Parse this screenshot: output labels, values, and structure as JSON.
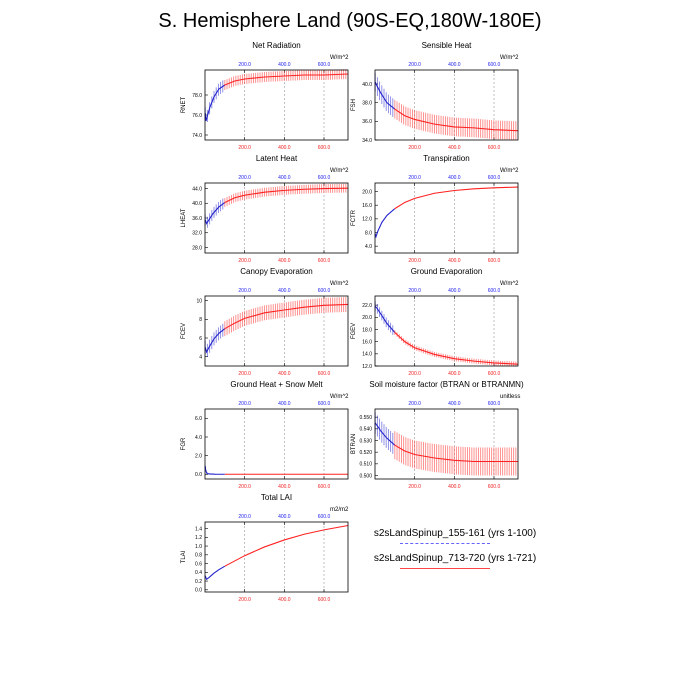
{
  "title": "S. Hemisphere Land (90S-EQ,180W-180E)",
  "legend": [
    {
      "label": "s2sLandSpinup_155-161 (yrs 1-100)",
      "color": "#2222cc"
    },
    {
      "label": "s2sLandSpinup_713-720 (yrs 1-721)",
      "color": "#ff2222"
    }
  ],
  "chart_data": [
    {
      "type": "line",
      "title": "Net Radiation",
      "ylabel": "RNET",
      "units": "W/m^2",
      "xlim": [
        0,
        721
      ],
      "ylim": [
        73.5,
        80.5
      ],
      "yticks": [
        "74.0",
        "76.0",
        "78.0"
      ],
      "ytick_values": [
        74,
        76,
        78
      ],
      "top_ticks": [
        "200.0",
        "400.0",
        "600.0"
      ],
      "bottom_ticks": [
        "200.0",
        "400.0",
        "600.0"
      ],
      "xtick_values": [
        200,
        400,
        600
      ],
      "series": [
        {
          "name": "yrs 1-100",
          "points": [
            [
              1,
              76.2
            ],
            [
              5,
              75.4
            ],
            [
              12,
              75.9
            ],
            [
              25,
              76.8
            ],
            [
              45,
              77.8
            ],
            [
              70,
              78.6
            ],
            [
              100,
              79.0
            ]
          ],
          "spread": 0.6
        },
        {
          "name": "yrs 1-721",
          "points": [
            [
              100,
              79.0
            ],
            [
              150,
              79.4
            ],
            [
              200,
              79.6
            ],
            [
              300,
              79.8
            ],
            [
              400,
              79.9
            ],
            [
              500,
              80.0
            ],
            [
              600,
              80.0
            ],
            [
              721,
              80.1
            ]
          ],
          "spread": 0.5
        }
      ]
    },
    {
      "type": "line",
      "title": "Sensible Heat",
      "ylabel": "FSH",
      "units": "W/m^2",
      "xlim": [
        0,
        721
      ],
      "ylim": [
        34,
        41.5
      ],
      "yticks": [
        "34.0",
        "36.0",
        "38.0",
        "40.0"
      ],
      "ytick_values": [
        34,
        36,
        38,
        40
      ],
      "top_ticks": [
        "200.0",
        "400.0",
        "600.0"
      ],
      "bottom_ticks": [
        "200.0",
        "400.0",
        "600.0"
      ],
      "xtick_values": [
        200,
        400,
        600
      ],
      "series": [
        {
          "name": "yrs 1-100",
          "points": [
            [
              1,
              40.2
            ],
            [
              10,
              39.8
            ],
            [
              30,
              39.0
            ],
            [
              60,
              38.0
            ],
            [
              100,
              37.3
            ]
          ],
          "spread": 1.0
        },
        {
          "name": "yrs 1-721",
          "points": [
            [
              100,
              37.3
            ],
            [
              150,
              36.6
            ],
            [
              200,
              36.2
            ],
            [
              300,
              35.7
            ],
            [
              400,
              35.4
            ],
            [
              500,
              35.3
            ],
            [
              600,
              35.1
            ],
            [
              721,
              35.0
            ]
          ],
          "spread": 1.0
        }
      ]
    },
    {
      "type": "line",
      "title": "Latent Heat",
      "ylabel": "LHEAT",
      "units": "W/m^2",
      "xlim": [
        0,
        721
      ],
      "ylim": [
        26.5,
        45.5
      ],
      "yticks": [
        "28.0",
        "32.0",
        "36.0",
        "40.0",
        "44.0"
      ],
      "ytick_values": [
        28,
        32,
        36,
        40,
        44
      ],
      "top_ticks": [
        "200.0",
        "400.0",
        "600.0"
      ],
      "bottom_ticks": [
        "200.0",
        "400.0",
        "600.0"
      ],
      "xtick_values": [
        200,
        400,
        600
      ],
      "series": [
        {
          "name": "yrs 1-100",
          "points": [
            [
              1,
              35.5
            ],
            [
              8,
              34.5
            ],
            [
              20,
              35.5
            ],
            [
              40,
              37.2
            ],
            [
              70,
              39.0
            ],
            [
              100,
              40.2
            ]
          ],
          "spread": 1.5
        },
        {
          "name": "yrs 1-721",
          "points": [
            [
              100,
              40.2
            ],
            [
              150,
              41.5
            ],
            [
              200,
              42.2
            ],
            [
              300,
              43.0
            ],
            [
              400,
              43.5
            ],
            [
              500,
              43.8
            ],
            [
              600,
              44.0
            ],
            [
              721,
              44.1
            ]
          ],
          "spread": 1.2
        }
      ]
    },
    {
      "type": "line",
      "title": "Transpiration",
      "ylabel": "FCTR",
      "units": "W/m^2",
      "xlim": [
        0,
        721
      ],
      "ylim": [
        2,
        22.5
      ],
      "yticks": [
        "4.0",
        "8.0",
        "12.0",
        "16.0",
        "20.0"
      ],
      "ytick_values": [
        4,
        8,
        12,
        16,
        20
      ],
      "top_ticks": [
        "200.0",
        "400.0",
        "600.0"
      ],
      "bottom_ticks": [
        "200.0",
        "400.0",
        "600.0"
      ],
      "xtick_values": [
        200,
        400,
        600
      ],
      "series": [
        {
          "name": "yrs 1-100",
          "points": [
            [
              1,
              7.5
            ],
            [
              5,
              6.8
            ],
            [
              15,
              8.5
            ],
            [
              35,
              11.0
            ],
            [
              60,
              13.0
            ],
            [
              100,
              15.0
            ]
          ],
          "spread": 0.2
        },
        {
          "name": "yrs 1-721",
          "points": [
            [
              100,
              15.0
            ],
            [
              150,
              16.8
            ],
            [
              200,
              18.0
            ],
            [
              300,
              19.5
            ],
            [
              400,
              20.3
            ],
            [
              500,
              20.8
            ],
            [
              600,
              21.1
            ],
            [
              721,
              21.3
            ]
          ],
          "spread": 0.1
        }
      ]
    },
    {
      "type": "line",
      "title": "Canopy Evaporation",
      "ylabel": "FCEV",
      "units": "W/m^2",
      "xlim": [
        0,
        721
      ],
      "ylim": [
        3,
        10.5
      ],
      "yticks": [
        "4",
        "6",
        "8",
        "10"
      ],
      "ytick_values": [
        4,
        6,
        8,
        10
      ],
      "top_ticks": [
        "200.0",
        "400.0",
        "600.0"
      ],
      "bottom_ticks": [
        "200.0",
        "400.0",
        "600.0"
      ],
      "xtick_values": [
        200,
        400,
        600
      ],
      "series": [
        {
          "name": "yrs 1-100",
          "points": [
            [
              1,
              5.0
            ],
            [
              8,
              4.5
            ],
            [
              20,
              5.0
            ],
            [
              45,
              5.9
            ],
            [
              70,
              6.5
            ],
            [
              100,
              7.0
            ]
          ],
          "spread": 0.7
        },
        {
          "name": "yrs 1-721",
          "points": [
            [
              100,
              7.0
            ],
            [
              150,
              7.6
            ],
            [
              200,
              8.1
            ],
            [
              300,
              8.7
            ],
            [
              400,
              9.0
            ],
            [
              500,
              9.3
            ],
            [
              600,
              9.5
            ],
            [
              721,
              9.6
            ]
          ],
          "spread": 0.8
        }
      ]
    },
    {
      "type": "line",
      "title": "Ground Evaporation",
      "ylabel": "FGEV",
      "units": "W/m^2",
      "xlim": [
        0,
        721
      ],
      "ylim": [
        12,
        23.5
      ],
      "yticks": [
        "12.0",
        "14.0",
        "16.0",
        "18.0",
        "20.0",
        "22.0"
      ],
      "ytick_values": [
        12,
        14,
        16,
        18,
        20,
        22
      ],
      "top_ticks": [
        "200.0",
        "400.0",
        "600.0"
      ],
      "bottom_ticks": [
        "200.0",
        "400.0",
        "600.0"
      ],
      "xtick_values": [
        200,
        400,
        600
      ],
      "series": [
        {
          "name": "yrs 1-100",
          "points": [
            [
              1,
              21.8
            ],
            [
              10,
              21.5
            ],
            [
              30,
              20.5
            ],
            [
              60,
              19.0
            ],
            [
              100,
              17.5
            ]
          ],
          "spread": 0.8
        },
        {
          "name": "yrs 1-721",
          "points": [
            [
              100,
              17.5
            ],
            [
              150,
              16.0
            ],
            [
              200,
              15.0
            ],
            [
              300,
              13.9
            ],
            [
              400,
              13.2
            ],
            [
              500,
              12.8
            ],
            [
              600,
              12.5
            ],
            [
              721,
              12.3
            ]
          ],
          "spread": 0.4
        }
      ]
    },
    {
      "type": "line",
      "title": "Ground Heat + Snow Melt",
      "ylabel": "FGR",
      "units": "W/m^2",
      "xlim": [
        0,
        721
      ],
      "ylim": [
        -0.5,
        7
      ],
      "yticks": [
        "0.0",
        "2.0",
        "4.0",
        "6.0"
      ],
      "ytick_values": [
        0,
        2,
        4,
        6
      ],
      "top_ticks": [
        "200.0",
        "400.0",
        "600.0"
      ],
      "bottom_ticks": [
        "200.0",
        "400.0",
        "600.0"
      ],
      "xtick_values": [
        200,
        400,
        600
      ],
      "series": [
        {
          "name": "yrs 1-100",
          "points": [
            [
              1,
              0.9
            ],
            [
              3,
              0.5
            ],
            [
              8,
              0.15
            ],
            [
              20,
              0.04
            ],
            [
              50,
              0.02
            ],
            [
              100,
              0.01
            ]
          ],
          "spread": 0
        },
        {
          "name": "yrs 1-721",
          "points": [
            [
              100,
              0.01
            ],
            [
              721,
              0.01
            ]
          ],
          "spread": 0
        }
      ]
    },
    {
      "type": "line",
      "title": "Soil moisture factor (BTRAN or BTRANMN)",
      "ylabel": "BTRAN",
      "units": "unitless",
      "xlim": [
        0,
        721
      ],
      "ylim": [
        0.497,
        0.557
      ],
      "yticks": [
        "0.500",
        "0.510",
        "0.520",
        "0.530",
        "0.540",
        "0.550"
      ],
      "ytick_values": [
        0.5,
        0.51,
        0.52,
        0.53,
        0.54,
        0.55
      ],
      "top_ticks": [
        "200.0",
        "400.0",
        "600.0"
      ],
      "bottom_ticks": [
        "200.0",
        "400.0",
        "600.0"
      ],
      "xtick_values": [
        200,
        400,
        600
      ],
      "series": [
        {
          "name": "yrs 1-100",
          "points": [
            [
              1,
              0.545
            ],
            [
              10,
              0.543
            ],
            [
              30,
              0.538
            ],
            [
              60,
              0.532
            ],
            [
              100,
              0.526
            ]
          ],
          "spread": 0.009
        },
        {
          "name": "yrs 1-721",
          "points": [
            [
              100,
              0.526
            ],
            [
              150,
              0.521
            ],
            [
              200,
              0.518
            ],
            [
              300,
              0.515
            ],
            [
              400,
              0.513
            ],
            [
              500,
              0.512
            ],
            [
              600,
              0.512
            ],
            [
              721,
              0.512
            ]
          ],
          "spread": 0.012
        }
      ]
    },
    {
      "type": "line",
      "title": "Total LAI",
      "ylabel": "TLAI",
      "units": "m2/m2",
      "xlim": [
        0,
        721
      ],
      "ylim": [
        -0.05,
        1.55
      ],
      "yticks": [
        "0.0",
        "0.2",
        "0.4",
        "0.6",
        "0.8",
        "1.0",
        "1.2",
        "1.4"
      ],
      "ytick_values": [
        0,
        0.2,
        0.4,
        0.6,
        0.8,
        1.0,
        1.2,
        1.4
      ],
      "top_ticks": [
        "200.0",
        "400.0",
        "600.0"
      ],
      "bottom_ticks": [
        "200.0",
        "400.0",
        "600.0"
      ],
      "xtick_values": [
        200,
        400,
        600
      ],
      "series": [
        {
          "name": "yrs 1-100",
          "points": [
            [
              1,
              0.32
            ],
            [
              8,
              0.24
            ],
            [
              20,
              0.28
            ],
            [
              45,
              0.38
            ],
            [
              70,
              0.46
            ],
            [
              100,
              0.54
            ]
          ],
          "spread": 0
        },
        {
          "name": "yrs 1-721",
          "points": [
            [
              100,
              0.54
            ],
            [
              200,
              0.78
            ],
            [
              300,
              0.98
            ],
            [
              400,
              1.14
            ],
            [
              500,
              1.27
            ],
            [
              600,
              1.37
            ],
            [
              721,
              1.47
            ]
          ],
          "spread": 0
        }
      ]
    }
  ]
}
